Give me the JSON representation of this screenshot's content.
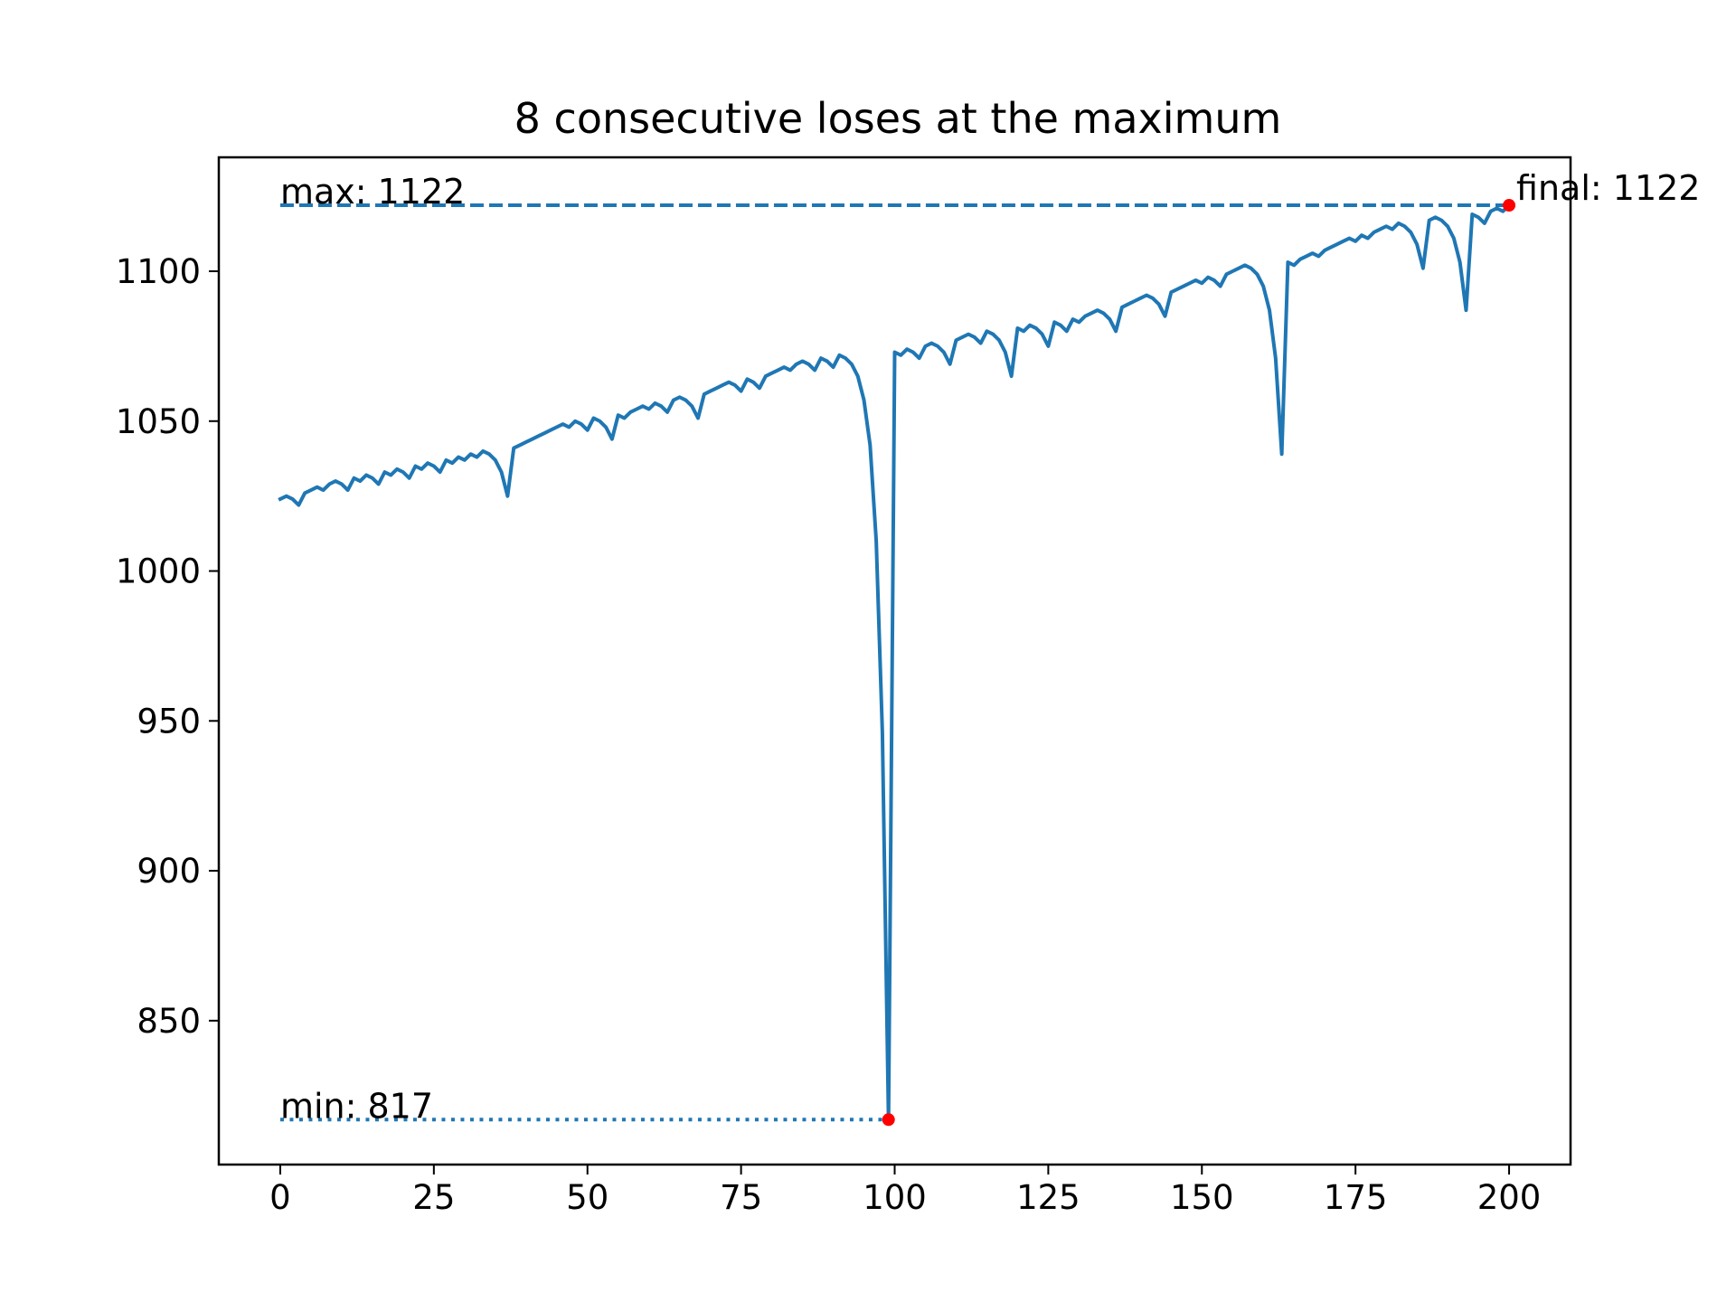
{
  "chart_data": {
    "type": "line",
    "title": "8 consecutive loses at the maximum",
    "xlabel": "",
    "ylabel": "",
    "xlim": [
      -10,
      210
    ],
    "ylim": [
      802,
      1138
    ],
    "grid": false,
    "legend": false,
    "x_ticks": [
      0,
      25,
      50,
      75,
      100,
      125,
      150,
      175,
      200
    ],
    "y_ticks": [
      850,
      900,
      950,
      1000,
      1050,
      1100
    ],
    "colors": {
      "line": "#1f77b4",
      "marker": "#ff0000",
      "axes": "#000000"
    },
    "series": [
      {
        "values": [
          1024,
          1025,
          1024,
          1022,
          1026,
          1027,
          1028,
          1027,
          1029,
          1030,
          1029,
          1027,
          1031,
          1030,
          1032,
          1031,
          1029,
          1033,
          1032,
          1034,
          1033,
          1031,
          1035,
          1034,
          1036,
          1035,
          1033,
          1037,
          1036,
          1038,
          1037,
          1039,
          1038,
          1040,
          1039,
          1037,
          1033,
          1025,
          1041,
          1042,
          1043,
          1044,
          1045,
          1046,
          1047,
          1048,
          1049,
          1048,
          1050,
          1049,
          1047,
          1051,
          1050,
          1048,
          1044,
          1052,
          1051,
          1053,
          1054,
          1055,
          1054,
          1056,
          1055,
          1053,
          1057,
          1058,
          1057,
          1055,
          1051,
          1059,
          1060,
          1061,
          1062,
          1063,
          1062,
          1060,
          1064,
          1063,
          1061,
          1065,
          1066,
          1067,
          1068,
          1067,
          1069,
          1070,
          1069,
          1067,
          1071,
          1070,
          1068,
          1072,
          1071,
          1069,
          1065,
          1057,
          1042,
          1010,
          946,
          817,
          1073,
          1072,
          1074,
          1073,
          1071,
          1075,
          1076,
          1075,
          1073,
          1069,
          1077,
          1078,
          1079,
          1078,
          1076,
          1080,
          1079,
          1077,
          1073,
          1065,
          1081,
          1080,
          1082,
          1081,
          1079,
          1075,
          1083,
          1082,
          1080,
          1084,
          1083,
          1085,
          1086,
          1087,
          1086,
          1084,
          1080,
          1088,
          1089,
          1090,
          1091,
          1092,
          1091,
          1089,
          1085,
          1093,
          1094,
          1095,
          1096,
          1097,
          1096,
          1098,
          1097,
          1095,
          1099,
          1100,
          1101,
          1102,
          1101,
          1099,
          1095,
          1087,
          1071,
          1039,
          1103,
          1102,
          1104,
          1105,
          1106,
          1105,
          1107,
          1108,
          1109,
          1110,
          1111,
          1110,
          1112,
          1111,
          1113,
          1114,
          1115,
          1114,
          1116,
          1115,
          1113,
          1109,
          1101,
          1117,
          1118,
          1117,
          1115,
          1111,
          1103,
          1087,
          1119,
          1118,
          1116,
          1120,
          1121,
          1120,
          1122
        ]
      }
    ],
    "reference_lines": [
      {
        "label": "max: 1122",
        "y": 1122,
        "x_start": 0,
        "x_end": 200,
        "style": "dashed"
      },
      {
        "label": "min: 817",
        "y": 817,
        "x_start": 0,
        "x_end": 99,
        "style": "dotted"
      }
    ],
    "points": [
      {
        "label": "final: 1122",
        "x": 200,
        "y": 1122
      },
      {
        "label": "",
        "x": 99,
        "y": 817
      }
    ]
  }
}
